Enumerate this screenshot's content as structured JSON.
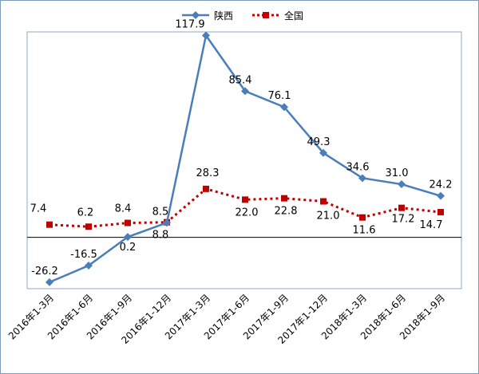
{
  "chart_data": {
    "type": "line",
    "categories": [
      "2016年1-3月",
      "2016年1-6月",
      "2016年1-9月",
      "2016年1-12月",
      "2017年1-3月",
      "2017年1-6月",
      "2017年1-9月",
      "2017年1-12月",
      "2018年1-3月",
      "2018年1-6月",
      "2018年1-9月"
    ],
    "series": [
      {
        "name": "陕西",
        "color": "#4a7ebb",
        "marker": "diamond",
        "line_style": "solid",
        "values": [
          -26.2,
          -16.5,
          0.2,
          8.5,
          117.9,
          85.4,
          76.1,
          49.3,
          34.6,
          31.0,
          24.2
        ],
        "labels": [
          "-26.2",
          "-16.5",
          "0.2",
          "8.5",
          "117.9",
          "85.4",
          "76.1",
          "49.3",
          "34.6",
          "31.0",
          "24.2"
        ]
      },
      {
        "name": "全国",
        "color": "#c00000",
        "marker": "square",
        "line_style": "dotted",
        "values": [
          7.4,
          6.2,
          8.4,
          8.8,
          28.3,
          22.0,
          22.8,
          21.0,
          11.6,
          17.2,
          14.7
        ],
        "labels": [
          "7.4",
          "6.2",
          "8.4",
          "8.8",
          "28.3",
          "22.0",
          "22.8",
          "21.0",
          "11.6",
          "17.2",
          "14.7"
        ]
      }
    ],
    "title": "",
    "xlabel": "",
    "ylabel": "",
    "ylim": [
      -30,
      120
    ],
    "grid": false,
    "legend": "top-center"
  }
}
